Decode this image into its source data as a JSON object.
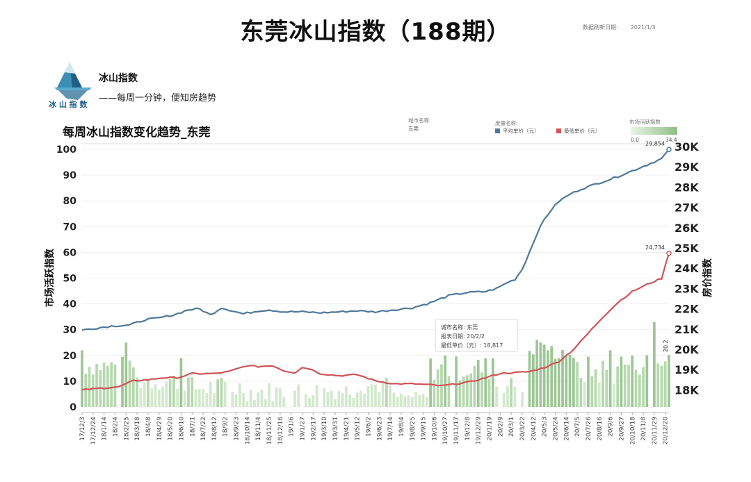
{
  "page": {
    "title": "东莞冰山指数（188期）",
    "refresh_label": "数据刷新日期:",
    "refresh_date": "2021/1/3"
  },
  "brand": {
    "logo_text": "冰 山 指 数",
    "name": "冰山指数",
    "slogan": "——每周一分钟，便知房趋势"
  },
  "chart_header": {
    "title": "每周冰山指数变化趋势_东莞",
    "city_label": "城市名称:",
    "city_value": "东莞",
    "measure_label": "度量名称:",
    "legend": [
      {
        "name": "平均单价（元）",
        "color": "#4e7899"
      },
      {
        "name": "最低单价（元）",
        "color": "#d05356"
      }
    ],
    "activity_label": "市场活跃指数",
    "activity_min": "0.0",
    "activity_max": "34.4"
  },
  "colors": {
    "avg": "#4e7899",
    "low": "#d05356",
    "bar": "#a9d0a0",
    "grid": "#e6e6e6"
  },
  "tooltip": {
    "lines": [
      "城市名称: 东莞",
      "报表日期: 20/2/2",
      "最低单价（元）: 18,817"
    ]
  },
  "chart_data": {
    "type": "line",
    "x_ticks": [
      "17/12/3",
      "17/12/24",
      "18/1/14",
      "18/2/4",
      "18/2/25",
      "18/3/18",
      "18/4/8",
      "18/4/29",
      "18/5/20",
      "18/6/10",
      "18/7/1",
      "18/7/22",
      "18/8/12",
      "18/9/2",
      "18/9/23",
      "18/10/14",
      "18/11/4",
      "18/11/25",
      "18/12/16",
      "19/1/6",
      "19/1/27",
      "19/2/17",
      "19/3/10",
      "19/3/31",
      "19/4/21",
      "19/5/12",
      "19/6/2",
      "19/6/23",
      "19/7/14",
      "19/8/4",
      "19/8/25",
      "19/9/15",
      "19/10/6",
      "19/10/27",
      "19/11/17",
      "19/12/8",
      "19/12/29",
      "20/1/19",
      "20/2/9",
      "20/3/1",
      "20/3/22",
      "20/4/12",
      "20/5/3",
      "20/5/24",
      "20/6/14",
      "20/7/5",
      "20/7/26",
      "20/8/16",
      "20/9/6",
      "20/9/27",
      "20/10/18",
      "20/11/8",
      "20/11/29",
      "20/12/20"
    ],
    "left_axis": {
      "label": "市场活跃指数",
      "min": 0,
      "max": 100,
      "ticks": [
        0,
        10,
        20,
        30,
        40,
        50,
        60,
        70,
        80,
        90,
        100
      ]
    },
    "right_axis": {
      "label": "房价指数",
      "min": 17500,
      "max": 30000,
      "ticks": [
        18000,
        19000,
        20000,
        21000,
        22000,
        23000,
        24000,
        25000,
        26000,
        27000,
        28000,
        29000,
        30000
      ],
      "tick_labels": [
        "18K",
        "19K",
        "20K",
        "21K",
        "22K",
        "23K",
        "24K",
        "25K",
        "26K",
        "27K",
        "28K",
        "29K",
        "30K"
      ]
    },
    "series": [
      {
        "name": "平均单价（元）",
        "axis": "right",
        "keyframes": [
          [
            0,
            20950
          ],
          [
            8,
            21150
          ],
          [
            13,
            21200
          ],
          [
            17,
            21450
          ],
          [
            21,
            21550
          ],
          [
            25,
            21700
          ],
          [
            29,
            21950
          ],
          [
            32,
            22000
          ],
          [
            35,
            21700
          ],
          [
            38,
            22050
          ],
          [
            40,
            21950
          ],
          [
            44,
            21750
          ],
          [
            48,
            21900
          ],
          [
            51,
            21950
          ],
          [
            55,
            21850
          ],
          [
            60,
            21850
          ],
          [
            65,
            21800
          ],
          [
            70,
            21850
          ],
          [
            75,
            21900
          ],
          [
            80,
            21850
          ],
          [
            85,
            21950
          ],
          [
            90,
            22050
          ],
          [
            95,
            22300
          ],
          [
            100,
            22650
          ],
          [
            105,
            22800
          ],
          [
            110,
            22850
          ],
          [
            113,
            23000
          ],
          [
            116,
            23300
          ],
          [
            118,
            23450
          ],
          [
            120,
            23950
          ],
          [
            122,
            24800
          ],
          [
            124,
            25700
          ],
          [
            126,
            26400
          ],
          [
            128,
            26900
          ],
          [
            130,
            27300
          ],
          [
            133,
            27650
          ],
          [
            136,
            27900
          ],
          [
            140,
            28150
          ],
          [
            145,
            28450
          ],
          [
            150,
            28800
          ],
          [
            154,
            29100
          ],
          [
            158,
            29400
          ],
          [
            160,
            29854
          ]
        ],
        "end_label": "29,854"
      },
      {
        "name": "最低单价（元）",
        "axis": "right",
        "keyframes": [
          [
            0,
            18000
          ],
          [
            6,
            18100
          ],
          [
            10,
            18150
          ],
          [
            14,
            18450
          ],
          [
            18,
            18500
          ],
          [
            22,
            18600
          ],
          [
            26,
            18600
          ],
          [
            30,
            18800
          ],
          [
            36,
            18800
          ],
          [
            40,
            18900
          ],
          [
            45,
            19200
          ],
          [
            48,
            19150
          ],
          [
            52,
            19200
          ],
          [
            55,
            18950
          ],
          [
            58,
            18850
          ],
          [
            60,
            19100
          ],
          [
            62,
            19050
          ],
          [
            65,
            18800
          ],
          [
            70,
            18700
          ],
          [
            75,
            18750
          ],
          [
            80,
            18450
          ],
          [
            85,
            18300
          ],
          [
            90,
            18300
          ],
          [
            95,
            18250
          ],
          [
            98,
            18200
          ],
          [
            102,
            18300
          ],
          [
            106,
            18400
          ],
          [
            110,
            18600
          ],
          [
            114,
            18817
          ],
          [
            118,
            18850
          ],
          [
            122,
            18900
          ],
          [
            126,
            19100
          ],
          [
            130,
            19400
          ],
          [
            134,
            20000
          ],
          [
            138,
            20800
          ],
          [
            142,
            21600
          ],
          [
            146,
            22300
          ],
          [
            150,
            22850
          ],
          [
            154,
            23200
          ],
          [
            158,
            23500
          ],
          [
            160,
            24734
          ]
        ],
        "end_label": "24,734"
      },
      {
        "name": "市场活跃指数",
        "axis": "left",
        "type": "bar",
        "seed_ranges": [
          [
            0,
            15,
            12,
            20
          ],
          [
            15,
            30,
            6,
            14
          ],
          [
            30,
            45,
            3,
            12
          ],
          [
            45,
            60,
            2,
            10
          ],
          [
            60,
            75,
            3,
            10
          ],
          [
            75,
            85,
            5,
            12
          ],
          [
            85,
            95,
            2,
            6
          ],
          [
            95,
            112,
            10,
            20
          ],
          [
            112,
            122,
            5,
            12
          ],
          [
            122,
            134,
            18,
            25
          ],
          [
            134,
            146,
            8,
            20
          ],
          [
            146,
            160,
            12,
            22
          ]
        ],
        "spikes": [
          [
            0,
            22
          ],
          [
            12,
            25
          ],
          [
            13,
            18
          ],
          [
            27,
            19
          ],
          [
            99,
            20
          ],
          [
            112,
            19
          ],
          [
            124,
            26
          ],
          [
            125,
            25
          ],
          [
            127,
            22
          ],
          [
            144,
            22
          ],
          [
            150,
            20
          ],
          [
            156,
            33
          ],
          [
            158,
            16
          ],
          [
            160,
            20.2
          ]
        ],
        "end_label": "20.2"
      }
    ]
  }
}
